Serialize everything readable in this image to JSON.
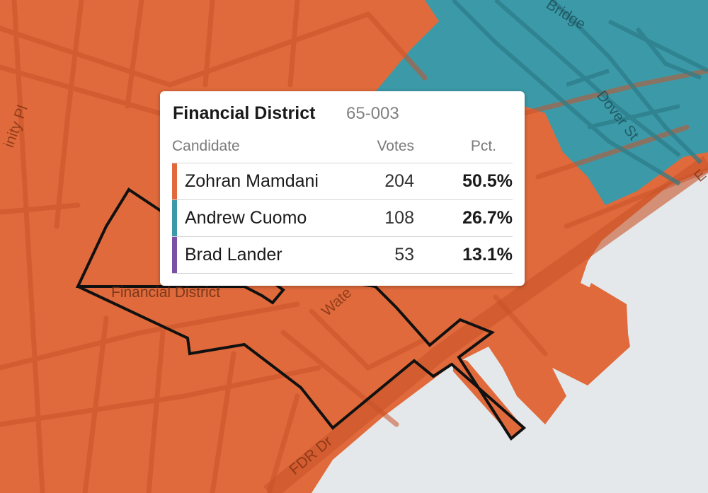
{
  "colors": {
    "mamdani": "#e06a3b",
    "cuomo": "#3c9aa8",
    "lander": "#7b4fa5",
    "water": "#e4e8ea"
  },
  "map": {
    "district_label": "Financial District",
    "streets": {
      "trinity": "inity Pl",
      "bridge": "Bridge",
      "dover": "Dover St",
      "water": "Wate",
      "fdr": "FDR Dr",
      "edge": "E"
    }
  },
  "tooltip": {
    "title": "Financial District",
    "district_id": "65-003",
    "headers": {
      "candidate": "Candidate",
      "votes": "Votes",
      "pct": "Pct."
    },
    "rows": [
      {
        "name": "Zohran Mamdani",
        "votes": "204",
        "pct": "50.5%",
        "color": "#e06a3b"
      },
      {
        "name": "Andrew Cuomo",
        "votes": "108",
        "pct": "26.7%",
        "color": "#3c9aa8"
      },
      {
        "name": "Brad Lander",
        "votes": "53",
        "pct": "13.1%",
        "color": "#7b4fa5"
      }
    ]
  }
}
